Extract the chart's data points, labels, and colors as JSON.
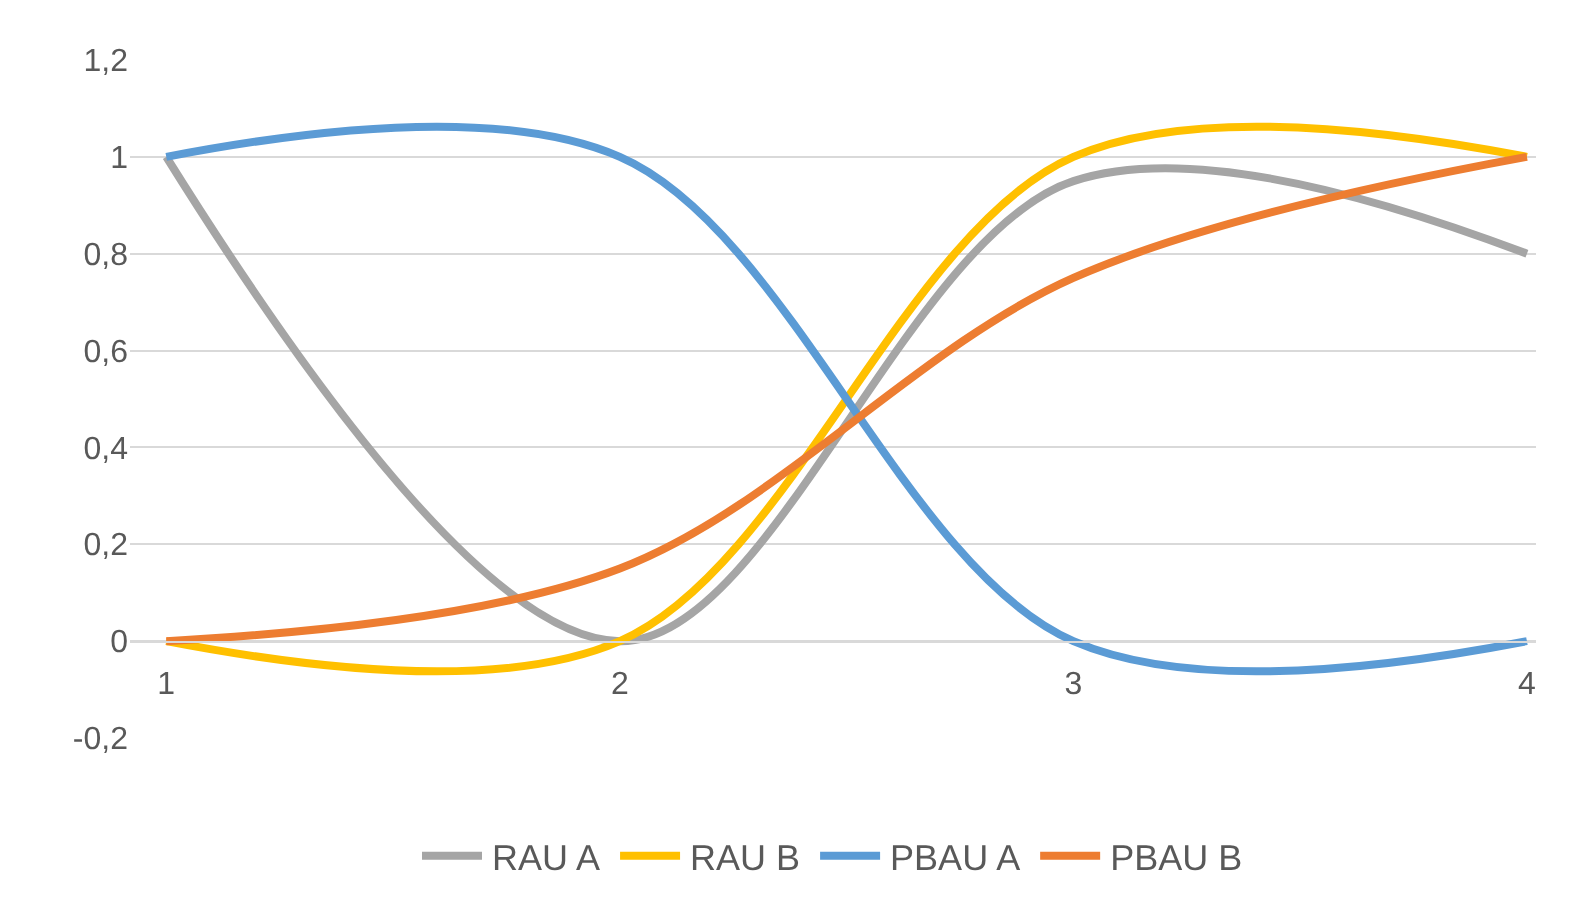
{
  "chart_data": {
    "type": "line",
    "categories": [
      "1",
      "2",
      "3",
      "4"
    ],
    "series": [
      {
        "name": "RAU A",
        "color": "#a5a5a5",
        "values": [
          1,
          0,
          0.95,
          0.8
        ]
      },
      {
        "name": "RAU B",
        "color": "#ffc000",
        "values": [
          0,
          0,
          1,
          1
        ]
      },
      {
        "name": "PBAU A",
        "color": "#5b9bd5",
        "values": [
          1,
          1,
          0,
          0
        ]
      },
      {
        "name": "PBAU B",
        "color": "#ed7d31",
        "values": [
          0,
          0.15,
          0.75,
          1
        ]
      }
    ],
    "ylim": [
      -0.2,
      1.2
    ],
    "yticks": [
      {
        "value": -0.2,
        "label": "-0,2"
      },
      0,
      {
        "value": 0.2,
        "label": "0,2"
      },
      {
        "value": 0.4,
        "label": "0,4"
      },
      {
        "value": 0.6,
        "label": "0,6"
      },
      {
        "value": 0.8,
        "label": "0,8"
      },
      1,
      {
        "value": 1.2,
        "label": "1,2"
      }
    ],
    "grid": "y",
    "legend": "bottom",
    "marker": "none",
    "line_style": "solid"
  }
}
